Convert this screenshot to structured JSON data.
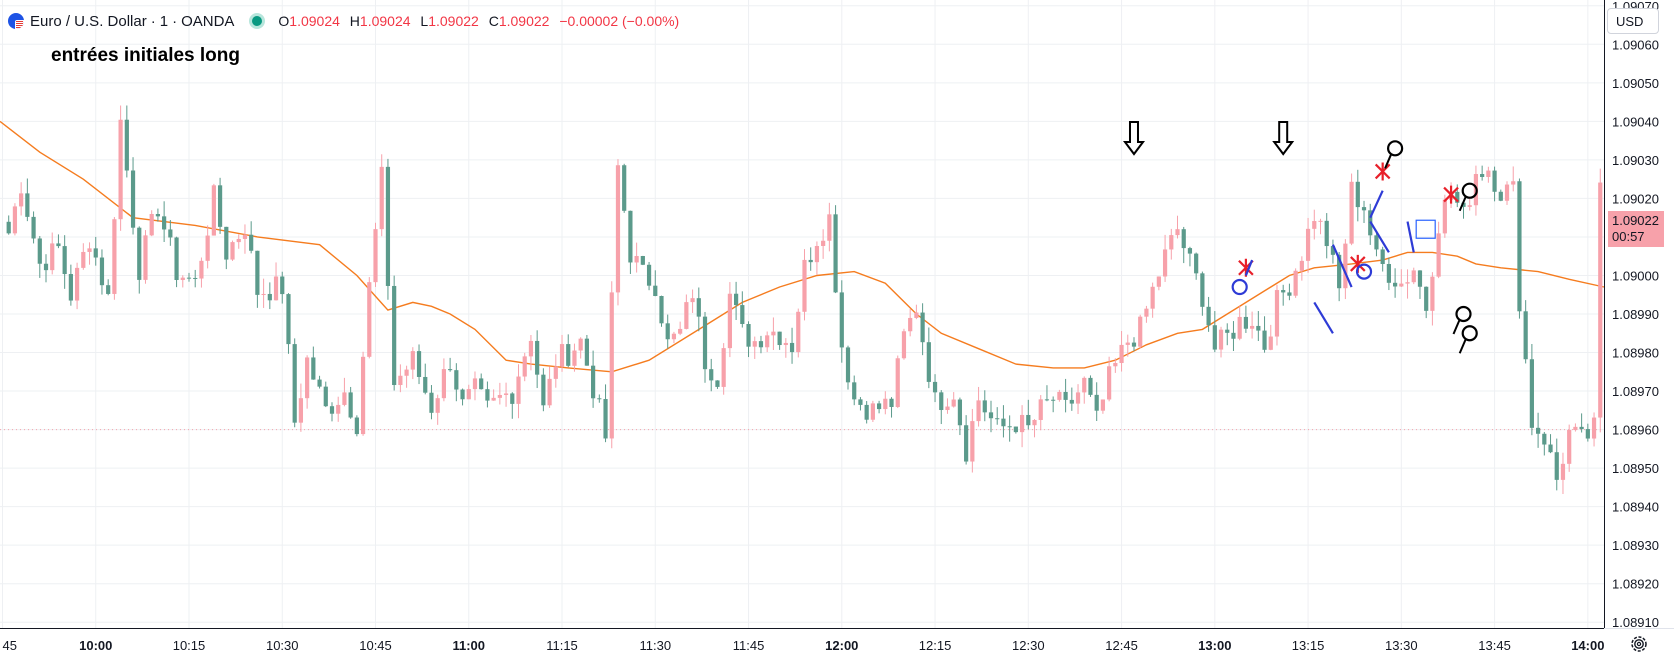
{
  "header": {
    "symbol": "Euro / U.S. Dollar",
    "interval": "1",
    "exchange": "OANDA",
    "separator": "·",
    "o_label": "O",
    "o_value": "1.09024",
    "h_label": "H",
    "h_value": "1.09024",
    "l_label": "L",
    "l_value": "1.09022",
    "c_label": "C",
    "c_value": "1.09022",
    "change": "−0.00002 (−0.00%)"
  },
  "annotation": {
    "text": "entrées initiales long"
  },
  "price_scale": {
    "currency": "USD",
    "last_price": "1.09022",
    "countdown": "00:57"
  },
  "colors": {
    "up": "#f7a1aa",
    "down": "#5b9a8b",
    "ma": "#f57c1f",
    "grid": "#eef0f3",
    "last_price_bg": "#f7a1aa"
  },
  "icons": [
    "currency-flag-icon",
    "market-status-icon",
    "settings-icon"
  ],
  "chart_data": {
    "type": "candlestick",
    "title": "Euro / U.S. Dollar · 1 · OANDA",
    "y_ticks": [
      "1.09070",
      "1.09060",
      "1.09050",
      "1.09040",
      "1.09030",
      "1.09020",
      "1.09010",
      "1.09000",
      "1.08990",
      "1.08980",
      "1.08970",
      "1.08960",
      "1.08950",
      "1.08940",
      "1.08930",
      "1.08920",
      "1.08910"
    ],
    "ylim": [
      1.089085,
      1.090715
    ],
    "x_ticks": [
      {
        "label": "45",
        "bold": false
      },
      {
        "label": "10:00",
        "bold": true
      },
      {
        "label": "10:15",
        "bold": false
      },
      {
        "label": "10:30",
        "bold": false
      },
      {
        "label": "10:45",
        "bold": false
      },
      {
        "label": "11:00",
        "bold": true
      },
      {
        "label": "11:15",
        "bold": false
      },
      {
        "label": "11:30",
        "bold": false
      },
      {
        "label": "11:45",
        "bold": false
      },
      {
        "label": "12:00",
        "bold": true
      },
      {
        "label": "12:15",
        "bold": false
      },
      {
        "label": "12:30",
        "bold": false
      },
      {
        "label": "12:45",
        "bold": false
      },
      {
        "label": "13:00",
        "bold": true
      },
      {
        "label": "13:15",
        "bold": false
      },
      {
        "label": "13:30",
        "bold": false
      },
      {
        "label": "13:45",
        "bold": false
      },
      {
        "label": "14:00",
        "bold": true
      }
    ],
    "xlim": [
      -1.4,
      256.6
    ],
    "close_anchors": [
      [
        0,
        1.09011
      ],
      [
        2,
        1.09024
      ],
      [
        5,
        1.09003
      ],
      [
        8,
        1.09007
      ],
      [
        10,
        1.08995
      ],
      [
        13,
        1.0901
      ],
      [
        16,
        1.08994
      ],
      [
        18,
        1.0904
      ],
      [
        21,
        1.09002
      ],
      [
        24,
        1.09018
      ],
      [
        27,
        1.09001
      ],
      [
        30,
        1.08998
      ],
      [
        33,
        1.0902
      ],
      [
        35,
        1.09006
      ],
      [
        38,
        1.09013
      ],
      [
        40,
        1.08996
      ],
      [
        44,
        1.08997
      ],
      [
        46,
        1.08962
      ],
      [
        48,
        1.08978
      ],
      [
        51,
        1.08965
      ],
      [
        54,
        1.0897
      ],
      [
        56,
        1.08962
      ],
      [
        58,
        1.08997
      ],
      [
        60,
        1.09025
      ],
      [
        62,
        1.08972
      ],
      [
        65,
        1.08978
      ],
      [
        68,
        1.08966
      ],
      [
        71,
        1.08978
      ],
      [
        73,
        1.08966
      ],
      [
        75,
        1.0897
      ],
      [
        77,
        1.08965
      ],
      [
        79,
        1.08968
      ],
      [
        81,
        1.0897
      ],
      [
        84,
        1.08985
      ],
      [
        86,
        1.08965
      ],
      [
        88,
        1.08978
      ],
      [
        90,
        1.0898
      ],
      [
        92,
        1.08983
      ],
      [
        94,
        1.08971
      ],
      [
        96,
        1.08958
      ],
      [
        98,
        1.09028
      ],
      [
        100,
        1.09006
      ],
      [
        102,
        1.09
      ],
      [
        104,
        1.08998
      ],
      [
        106,
        1.08982
      ],
      [
        108,
        1.08985
      ],
      [
        110,
        1.08996
      ],
      [
        112,
        1.08978
      ],
      [
        114,
        1.08974
      ],
      [
        116,
        1.08995
      ],
      [
        118,
        1.08985
      ],
      [
        120,
        1.08983
      ],
      [
        122,
        1.08986
      ],
      [
        124,
        1.08985
      ],
      [
        126,
        1.08982
      ],
      [
        128,
        1.09002
      ],
      [
        130,
        1.0901
      ],
      [
        132,
        1.09015
      ],
      [
        134,
        1.08982
      ],
      [
        136,
        1.08968
      ],
      [
        139,
        1.08965
      ],
      [
        142,
        1.08967
      ],
      [
        144,
        1.08984
      ],
      [
        146,
        1.08992
      ],
      [
        149,
        1.08967
      ],
      [
        152,
        1.0897
      ],
      [
        154,
        1.08955
      ],
      [
        156,
        1.08968
      ],
      [
        159,
        1.0896
      ],
      [
        162,
        1.08962
      ],
      [
        164,
        1.0896
      ],
      [
        166,
        1.08965
      ],
      [
        168,
        1.08968
      ],
      [
        170,
        1.08965
      ],
      [
        173,
        1.08972
      ],
      [
        175,
        1.08962
      ],
      [
        177,
        1.08973
      ],
      [
        180,
        1.08983
      ],
      [
        182,
        1.08986
      ],
      [
        184,
        1.08996
      ],
      [
        186,
        1.09005
      ],
      [
        188,
        1.09012
      ],
      [
        190,
        1.09003
      ],
      [
        192,
        1.08995
      ],
      [
        194,
        1.08981
      ],
      [
        196,
        1.08984
      ],
      [
        198,
        1.08988
      ],
      [
        200,
        1.08989
      ],
      [
        202,
        1.08982
      ],
      [
        204,
        1.08993
      ],
      [
        206,
        1.08998
      ],
      [
        208,
        1.09006
      ],
      [
        210,
        1.09016
      ],
      [
        212,
        1.09009
      ],
      [
        214,
        1.08996
      ],
      [
        216,
        1.09022
      ],
      [
        218,
        1.09018
      ],
      [
        220,
        1.09004
      ],
      [
        222,
        1.09001
      ],
      [
        224,
        1.08998
      ],
      [
        226,
        1.09002
      ],
      [
        228,
        1.08992
      ],
      [
        230,
        1.09014
      ],
      [
        232,
        1.09022
      ],
      [
        234,
        1.09015
      ],
      [
        236,
        1.09027
      ],
      [
        238,
        1.09028
      ],
      [
        240,
        1.09022
      ],
      [
        242,
        1.09022
      ],
      [
        243,
        1.08994
      ],
      [
        245,
        1.08962
      ],
      [
        247,
        1.08958
      ],
      [
        249,
        1.08947
      ],
      [
        251,
        1.08959
      ],
      [
        253,
        1.08957
      ],
      [
        255,
        1.0896
      ],
      [
        256,
        1.09022
      ]
    ],
    "moving_average": [
      [
        -1.4,
        1.0904
      ],
      [
        5,
        1.09032
      ],
      [
        12,
        1.09025
      ],
      [
        20,
        1.09015
      ],
      [
        30,
        1.09013
      ],
      [
        40,
        1.0901
      ],
      [
        50,
        1.09008
      ],
      [
        56,
        1.09
      ],
      [
        61,
        1.08991
      ],
      [
        65,
        1.08993
      ],
      [
        68,
        1.08992
      ],
      [
        71,
        1.0899
      ],
      [
        75,
        1.08986
      ],
      [
        80,
        1.08978
      ],
      [
        84,
        1.08977
      ],
      [
        90,
        1.08976
      ],
      [
        97,
        1.08975
      ],
      [
        103,
        1.08978
      ],
      [
        112,
        1.08987
      ],
      [
        118,
        1.08993
      ],
      [
        124,
        1.08997
      ],
      [
        130,
        1.09
      ],
      [
        136,
        1.09001
      ],
      [
        141,
        1.08998
      ],
      [
        146,
        1.0899
      ],
      [
        150,
        1.08985
      ],
      [
        156,
        1.08981
      ],
      [
        162,
        1.08977
      ],
      [
        168,
        1.08976
      ],
      [
        173,
        1.08976
      ],
      [
        178,
        1.08978
      ],
      [
        183,
        1.08982
      ],
      [
        188,
        1.08985
      ],
      [
        192,
        1.08986
      ],
      [
        197,
        1.08991
      ],
      [
        202,
        1.08996
      ],
      [
        206,
        1.09
      ],
      [
        210,
        1.09002
      ],
      [
        216,
        1.09003
      ],
      [
        221,
        1.09004
      ],
      [
        225,
        1.09006
      ],
      [
        229,
        1.09006
      ],
      [
        233,
        1.09005
      ],
      [
        236,
        1.09003
      ],
      [
        240,
        1.09002
      ],
      [
        246,
        1.09001
      ],
      [
        251,
        1.08999
      ],
      [
        256.6,
        1.08997
      ]
    ],
    "legend": "none",
    "grid": true
  },
  "markups": {
    "arrows": [
      {
        "bar": 181,
        "price": 1.09031
      },
      {
        "bar": 205,
        "price": 1.09031
      }
    ],
    "crosses": [
      {
        "bar": 199,
        "price": 1.09002
      },
      {
        "bar": 217,
        "price": 1.09003
      },
      {
        "bar": 221,
        "price": 1.09027
      },
      {
        "bar": 232,
        "price": 1.09021
      }
    ],
    "circles_black": [
      {
        "bar": 223,
        "price": 1.09033
      },
      {
        "bar": 235,
        "price": 1.09022
      },
      {
        "bar": 234,
        "price": 1.0899
      },
      {
        "bar": 235,
        "price": 1.08985
      }
    ],
    "circles_blue": [
      {
        "bar": 198,
        "price": 1.08997
      },
      {
        "bar": 218,
        "price": 1.09001
      }
    ],
    "blue_strokes": [
      {
        "from": [
          200,
          1.09004
        ],
        "to": [
          199,
          1.09
        ]
      },
      {
        "from": [
          221,
          1.09022
        ],
        "to": [
          219,
          1.09015
        ]
      },
      {
        "from": [
          213,
          1.09008
        ],
        "to": [
          216,
          1.08997
        ]
      },
      {
        "from": [
          219,
          1.09014
        ],
        "to": [
          222,
          1.09006
        ]
      },
      {
        "from": [
          225,
          1.09014
        ],
        "to": [
          226,
          1.09006
        ]
      },
      {
        "from": [
          210,
          1.08993
        ],
        "to": [
          213,
          1.08985
        ]
      }
    ],
    "box": {
      "bar": 228,
      "price": 1.09012
    }
  }
}
